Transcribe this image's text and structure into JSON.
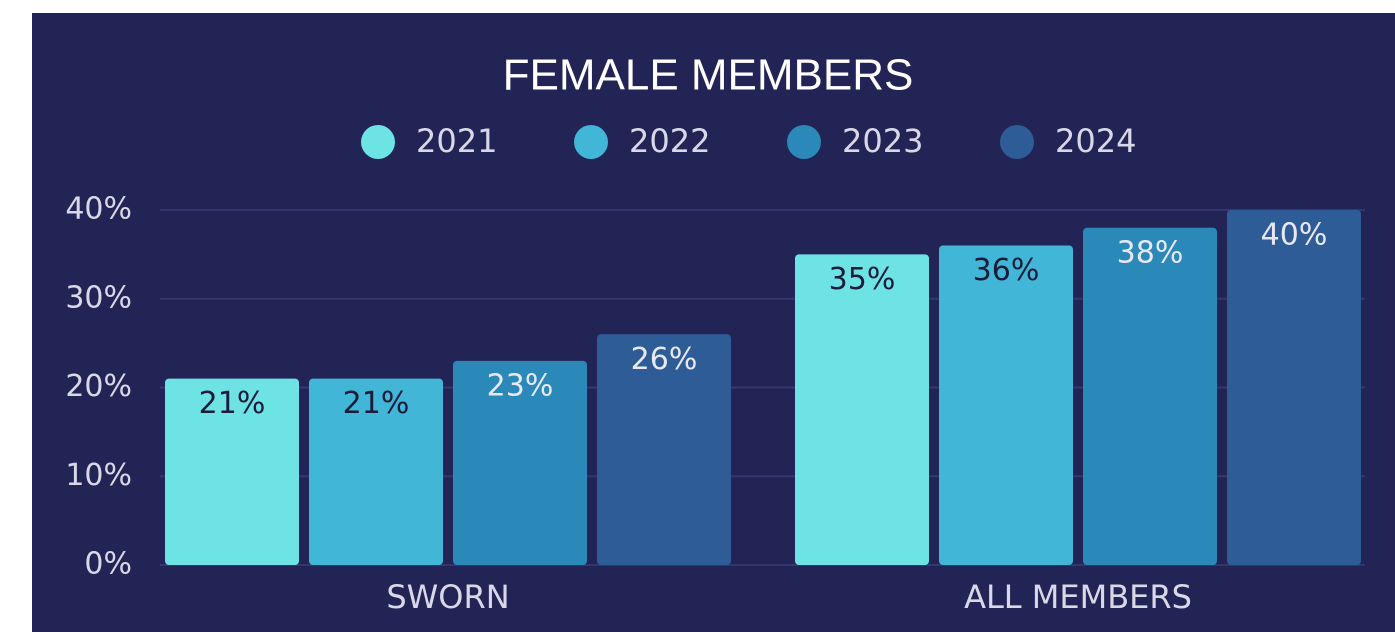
{
  "chart_data": {
    "type": "bar",
    "title": "FEMALE MEMBERS",
    "categories": [
      "SWORN",
      "ALL MEMBERS"
    ],
    "series": [
      {
        "name": "2021",
        "color": "#6ee3e6",
        "values": [
          21,
          35
        ],
        "value_labels": [
          "21%",
          "35%"
        ]
      },
      {
        "name": "2022",
        "color": "#42b6d6",
        "values": [
          21,
          36
        ],
        "value_labels": [
          "21%",
          "36%"
        ]
      },
      {
        "name": "2023",
        "color": "#2a89b8",
        "values": [
          23,
          38
        ],
        "value_labels": [
          "23%",
          "38%"
        ]
      },
      {
        "name": "2024",
        "color": "#2e5c96",
        "values": [
          26,
          40
        ],
        "value_labels": [
          "26%",
          "40%"
        ]
      }
    ],
    "ylim": [
      0,
      40
    ],
    "yticks": [
      {
        "value": 0,
        "label": "0%"
      },
      {
        "value": 10,
        "label": "10%"
      },
      {
        "value": 20,
        "label": "20%"
      },
      {
        "value": 30,
        "label": "30%"
      },
      {
        "value": 40,
        "label": "40%"
      }
    ],
    "grid": true,
    "legend": "top"
  }
}
